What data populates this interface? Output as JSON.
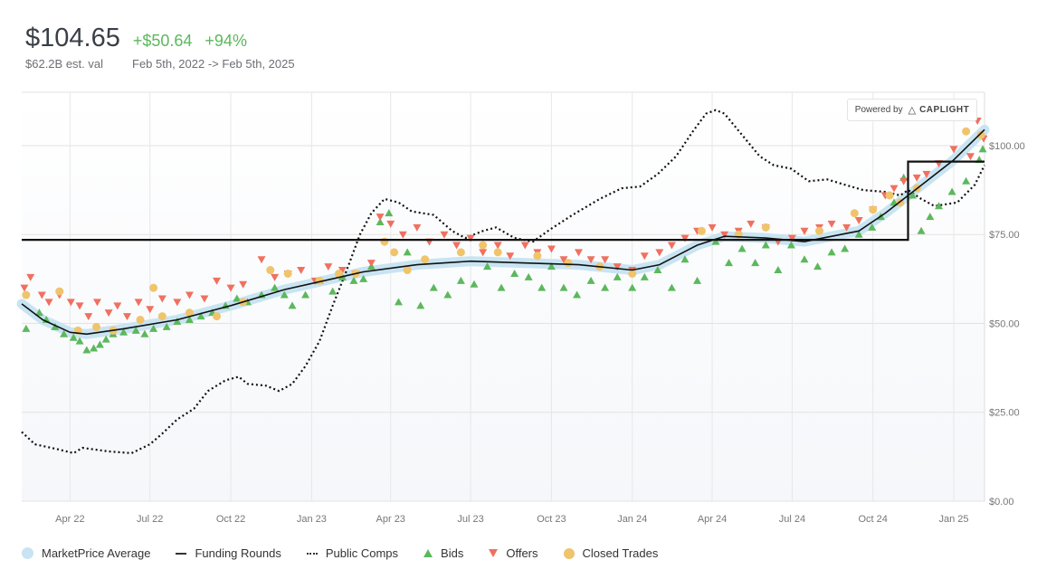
{
  "header": {
    "price": "$104.65",
    "change_abs": "+$50.64",
    "change_pct": "+94%",
    "valuation": "$62.2B est. val",
    "date_range": "Feb 5th, 2022 -> Feb 5th, 2025"
  },
  "badge": {
    "powered_by": "Powered by",
    "brand": "CAPLIGHT"
  },
  "legend": {
    "avg": "MarketPrice Average",
    "funding": "Funding Rounds",
    "comps": "Public Comps",
    "bids": "Bids",
    "offers": "Offers",
    "trades": "Closed Trades"
  },
  "colors": {
    "bids": "#5cb85c",
    "offers": "#f07060",
    "trades": "#f0c46c",
    "avg_band": "#c8e4f2",
    "positive": "#5cb85c"
  },
  "chart_data": {
    "type": "line",
    "x_start": "2022-02-05",
    "x_end": "2025-02-05",
    "x_ticks": [
      "Apr 22",
      "Jul 22",
      "Oct 22",
      "Jan 23",
      "Apr 23",
      "Jul 23",
      "Oct 23",
      "Jan 24",
      "Apr 24",
      "Jul 24",
      "Oct 24",
      "Jan 25"
    ],
    "y_ticks": [
      "$0.00",
      "$25.00",
      "$50.00",
      "$75.00",
      "$100.00"
    ],
    "ylim": [
      0,
      115
    ],
    "series": [
      {
        "name": "MarketPrice Average",
        "points": [
          [
            "2022-02-05",
            55.5
          ],
          [
            "2022-03-01",
            51
          ],
          [
            "2022-04-01",
            47.5
          ],
          [
            "2022-04-20",
            47
          ],
          [
            "2022-06-01",
            48.5
          ],
          [
            "2022-08-01",
            51
          ],
          [
            "2022-10-01",
            55
          ],
          [
            "2022-12-01",
            59.5
          ],
          [
            "2023-01-15",
            62
          ],
          [
            "2023-03-01",
            64.5
          ],
          [
            "2023-05-01",
            66.5
          ],
          [
            "2023-07-01",
            67.5
          ],
          [
            "2023-09-01",
            67
          ],
          [
            "2023-11-01",
            66.5
          ],
          [
            "2024-01-01",
            65
          ],
          [
            "2024-02-01",
            66.5
          ],
          [
            "2024-03-15",
            72
          ],
          [
            "2024-04-15",
            74.5
          ],
          [
            "2024-06-01",
            74
          ],
          [
            "2024-07-15",
            73
          ],
          [
            "2024-09-15",
            76
          ],
          [
            "2024-10-15",
            81
          ],
          [
            "2024-12-01",
            90
          ],
          [
            "2025-01-01",
            96
          ],
          [
            "2025-02-05",
            104.5
          ]
        ]
      },
      {
        "name": "Funding Rounds",
        "points": [
          [
            "2022-02-05",
            73.5
          ],
          [
            "2024-11-10",
            73.5
          ],
          [
            "2024-11-10",
            95.5
          ],
          [
            "2025-02-05",
            95.5
          ]
        ]
      },
      {
        "name": "Public Comps",
        "points": [
          [
            "2022-02-05",
            19.5
          ],
          [
            "2022-02-20",
            16
          ],
          [
            "2022-03-20",
            14.5
          ],
          [
            "2022-04-05",
            13.5
          ],
          [
            "2022-04-15",
            15
          ],
          [
            "2022-05-15",
            14
          ],
          [
            "2022-06-10",
            13.5
          ],
          [
            "2022-07-01",
            16
          ],
          [
            "2022-07-15",
            19
          ],
          [
            "2022-08-01",
            23
          ],
          [
            "2022-08-20",
            26
          ],
          [
            "2022-09-05",
            31
          ],
          [
            "2022-09-25",
            34
          ],
          [
            "2022-10-10",
            35
          ],
          [
            "2022-10-20",
            33
          ],
          [
            "2022-11-10",
            32.5
          ],
          [
            "2022-11-25",
            31
          ],
          [
            "2022-12-10",
            33
          ],
          [
            "2022-12-25",
            38
          ],
          [
            "2023-01-10",
            45
          ],
          [
            "2023-01-25",
            55
          ],
          [
            "2023-02-10",
            65
          ],
          [
            "2023-02-25",
            75
          ],
          [
            "2023-03-10",
            81
          ],
          [
            "2023-03-25",
            85
          ],
          [
            "2023-04-10",
            84
          ],
          [
            "2023-04-25",
            81.5
          ],
          [
            "2023-05-20",
            80.5
          ],
          [
            "2023-06-10",
            76
          ],
          [
            "2023-06-25",
            74
          ],
          [
            "2023-07-15",
            76
          ],
          [
            "2023-07-30",
            77
          ],
          [
            "2023-08-20",
            74
          ],
          [
            "2023-09-10",
            73
          ],
          [
            "2023-09-30",
            76.5
          ],
          [
            "2023-10-25",
            80.5
          ],
          [
            "2023-11-25",
            85
          ],
          [
            "2023-12-20",
            88
          ],
          [
            "2024-01-10",
            88.5
          ],
          [
            "2024-01-30",
            92
          ],
          [
            "2024-02-20",
            97
          ],
          [
            "2024-03-10",
            104
          ],
          [
            "2024-03-25",
            109
          ],
          [
            "2024-04-05",
            110
          ],
          [
            "2024-04-15",
            109
          ],
          [
            "2024-05-05",
            103
          ],
          [
            "2024-05-25",
            97
          ],
          [
            "2024-06-10",
            94.5
          ],
          [
            "2024-06-30",
            93.5
          ],
          [
            "2024-07-20",
            90
          ],
          [
            "2024-08-10",
            90.5
          ],
          [
            "2024-08-30",
            89
          ],
          [
            "2024-09-20",
            87.5
          ],
          [
            "2024-10-15",
            87
          ],
          [
            "2024-11-01",
            86
          ],
          [
            "2024-11-10",
            87.5
          ],
          [
            "2024-11-25",
            85
          ],
          [
            "2024-12-10",
            83
          ],
          [
            "2025-01-05",
            84
          ],
          [
            "2025-01-25",
            89
          ],
          [
            "2025-02-05",
            94.5
          ]
        ]
      }
    ],
    "bids": [
      [
        "2022-02-10",
        48.5
      ],
      [
        "2022-02-25",
        53
      ],
      [
        "2022-03-05",
        51
      ],
      [
        "2022-03-15",
        49
      ],
      [
        "2022-03-25",
        47
      ],
      [
        "2022-04-05",
        46
      ],
      [
        "2022-04-12",
        45
      ],
      [
        "2022-04-20",
        42.5
      ],
      [
        "2022-04-28",
        43
      ],
      [
        "2022-05-05",
        44
      ],
      [
        "2022-05-12",
        45.5
      ],
      [
        "2022-05-20",
        47
      ],
      [
        "2022-06-01",
        47.5
      ],
      [
        "2022-06-15",
        48
      ],
      [
        "2022-06-25",
        47
      ],
      [
        "2022-07-05",
        48.5
      ],
      [
        "2022-07-20",
        49
      ],
      [
        "2022-08-01",
        50.5
      ],
      [
        "2022-08-15",
        51
      ],
      [
        "2022-08-28",
        52
      ],
      [
        "2022-09-10",
        53
      ],
      [
        "2022-09-25",
        55
      ],
      [
        "2022-10-08",
        57
      ],
      [
        "2022-10-20",
        56
      ],
      [
        "2022-11-05",
        58
      ],
      [
        "2022-11-20",
        60
      ],
      [
        "2022-12-01",
        58
      ],
      [
        "2022-12-10",
        55
      ],
      [
        "2022-12-25",
        58
      ],
      [
        "2023-01-10",
        62
      ],
      [
        "2023-01-25",
        59
      ],
      [
        "2023-02-05",
        63
      ],
      [
        "2023-02-18",
        62
      ],
      [
        "2023-03-01",
        62.5
      ],
      [
        "2023-03-10",
        66
      ],
      [
        "2023-03-20",
        78.5
      ],
      [
        "2023-03-30",
        81
      ],
      [
        "2023-04-10",
        56
      ],
      [
        "2023-04-20",
        70
      ],
      [
        "2023-05-05",
        55
      ],
      [
        "2023-05-20",
        60
      ],
      [
        "2023-06-05",
        58
      ],
      [
        "2023-06-20",
        62
      ],
      [
        "2023-07-05",
        61
      ],
      [
        "2023-07-20",
        66
      ],
      [
        "2023-08-05",
        60
      ],
      [
        "2023-08-20",
        64
      ],
      [
        "2023-09-05",
        63
      ],
      [
        "2023-09-20",
        60
      ],
      [
        "2023-10-01",
        66
      ],
      [
        "2023-10-15",
        60
      ],
      [
        "2023-10-30",
        58
      ],
      [
        "2023-11-15",
        62
      ],
      [
        "2023-12-01",
        60
      ],
      [
        "2023-12-15",
        63
      ],
      [
        "2024-01-01",
        60
      ],
      [
        "2024-01-15",
        63
      ],
      [
        "2024-01-30",
        65
      ],
      [
        "2024-02-15",
        60
      ],
      [
        "2024-03-01",
        68
      ],
      [
        "2024-03-15",
        62
      ],
      [
        "2024-04-05",
        73
      ],
      [
        "2024-04-20",
        67
      ],
      [
        "2024-05-05",
        71
      ],
      [
        "2024-05-20",
        67
      ],
      [
        "2024-06-01",
        72
      ],
      [
        "2024-06-15",
        65
      ],
      [
        "2024-06-30",
        72
      ],
      [
        "2024-07-15",
        68
      ],
      [
        "2024-07-30",
        66
      ],
      [
        "2024-08-15",
        70
      ],
      [
        "2024-08-30",
        71
      ],
      [
        "2024-09-15",
        75
      ],
      [
        "2024-09-30",
        77
      ],
      [
        "2024-10-10",
        80
      ],
      [
        "2024-10-25",
        84
      ],
      [
        "2024-11-05",
        91
      ],
      [
        "2024-11-15",
        86
      ],
      [
        "2024-11-25",
        76
      ],
      [
        "2024-12-05",
        80
      ],
      [
        "2024-12-15",
        83
      ],
      [
        "2024-12-30",
        87
      ],
      [
        "2025-01-15",
        90
      ],
      [
        "2025-01-30",
        96
      ],
      [
        "2025-02-03",
        99
      ]
    ],
    "offers": [
      [
        "2022-02-08",
        60
      ],
      [
        "2022-02-15",
        63
      ],
      [
        "2022-02-28",
        58
      ],
      [
        "2022-03-08",
        56
      ],
      [
        "2022-03-20",
        58
      ],
      [
        "2022-04-02",
        56
      ],
      [
        "2022-04-12",
        55
      ],
      [
        "2022-04-22",
        52
      ],
      [
        "2022-05-02",
        56
      ],
      [
        "2022-05-15",
        53
      ],
      [
        "2022-05-25",
        55
      ],
      [
        "2022-06-05",
        52
      ],
      [
        "2022-06-18",
        56
      ],
      [
        "2022-07-01",
        54
      ],
      [
        "2022-07-15",
        57
      ],
      [
        "2022-08-01",
        56
      ],
      [
        "2022-08-15",
        58
      ],
      [
        "2022-09-01",
        57
      ],
      [
        "2022-09-15",
        62
      ],
      [
        "2022-10-01",
        60
      ],
      [
        "2022-10-15",
        61
      ],
      [
        "2022-11-05",
        68
      ],
      [
        "2022-11-20",
        63
      ],
      [
        "2022-12-05",
        64
      ],
      [
        "2022-12-20",
        65
      ],
      [
        "2023-01-05",
        62
      ],
      [
        "2023-01-20",
        66
      ],
      [
        "2023-02-05",
        65
      ],
      [
        "2023-02-20",
        64
      ],
      [
        "2023-03-10",
        67
      ],
      [
        "2023-03-20",
        80
      ],
      [
        "2023-04-01",
        78
      ],
      [
        "2023-04-15",
        75
      ],
      [
        "2023-05-01",
        77
      ],
      [
        "2023-05-15",
        73
      ],
      [
        "2023-06-01",
        75
      ],
      [
        "2023-06-15",
        72
      ],
      [
        "2023-07-01",
        74
      ],
      [
        "2023-07-15",
        70
      ],
      [
        "2023-08-01",
        72
      ],
      [
        "2023-08-15",
        69
      ],
      [
        "2023-09-01",
        72
      ],
      [
        "2023-09-15",
        70
      ],
      [
        "2023-10-01",
        71
      ],
      [
        "2023-10-15",
        68
      ],
      [
        "2023-11-01",
        70
      ],
      [
        "2023-11-15",
        68
      ],
      [
        "2023-12-01",
        68
      ],
      [
        "2023-12-15",
        66
      ],
      [
        "2024-01-01",
        65
      ],
      [
        "2024-01-15",
        69
      ],
      [
        "2024-02-01",
        70
      ],
      [
        "2024-02-15",
        72
      ],
      [
        "2024-03-01",
        74
      ],
      [
        "2024-03-15",
        76
      ],
      [
        "2024-04-01",
        77
      ],
      [
        "2024-04-15",
        75
      ],
      [
        "2024-05-01",
        76
      ],
      [
        "2024-05-15",
        78
      ],
      [
        "2024-06-01",
        77
      ],
      [
        "2024-06-15",
        73
      ],
      [
        "2024-07-01",
        74
      ],
      [
        "2024-07-15",
        76
      ],
      [
        "2024-08-01",
        77
      ],
      [
        "2024-08-15",
        78
      ],
      [
        "2024-09-01",
        77
      ],
      [
        "2024-09-15",
        79
      ],
      [
        "2024-10-01",
        82
      ],
      [
        "2024-10-15",
        86
      ],
      [
        "2024-10-25",
        88
      ],
      [
        "2024-11-05",
        90
      ],
      [
        "2024-11-20",
        91
      ],
      [
        "2024-12-01",
        92
      ],
      [
        "2024-12-15",
        95
      ],
      [
        "2025-01-01",
        99
      ],
      [
        "2025-01-10",
        108
      ],
      [
        "2025-01-20",
        97
      ],
      [
        "2025-01-28",
        107
      ],
      [
        "2025-02-04",
        102
      ]
    ],
    "closed_trades": [
      [
        "2022-02-10",
        58
      ],
      [
        "2022-03-20",
        59
      ],
      [
        "2022-04-10",
        48
      ],
      [
        "2022-05-01",
        49
      ],
      [
        "2022-05-20",
        48
      ],
      [
        "2022-06-20",
        51
      ],
      [
        "2022-07-15",
        52
      ],
      [
        "2022-07-05",
        60
      ],
      [
        "2022-08-15",
        53
      ],
      [
        "2022-09-15",
        52
      ],
      [
        "2022-10-15",
        56
      ],
      [
        "2022-11-15",
        65
      ],
      [
        "2022-12-05",
        64
      ],
      [
        "2023-01-10",
        62
      ],
      [
        "2023-02-01",
        64
      ],
      [
        "2023-02-20",
        64
      ],
      [
        "2023-03-25",
        73
      ],
      [
        "2023-04-05",
        70
      ],
      [
        "2023-04-20",
        65
      ],
      [
        "2023-05-10",
        68
      ],
      [
        "2023-06-20",
        70
      ],
      [
        "2023-07-15",
        72
      ],
      [
        "2023-08-01",
        70
      ],
      [
        "2023-09-15",
        69
      ],
      [
        "2023-10-20",
        67
      ],
      [
        "2023-11-25",
        66
      ],
      [
        "2024-01-01",
        64
      ],
      [
        "2024-03-20",
        76
      ],
      [
        "2024-05-01",
        75
      ],
      [
        "2024-06-01",
        77
      ],
      [
        "2024-08-01",
        76
      ],
      [
        "2024-09-10",
        81
      ],
      [
        "2024-10-01",
        82
      ],
      [
        "2024-10-20",
        86
      ],
      [
        "2024-11-01",
        84
      ],
      [
        "2024-11-20",
        88
      ],
      [
        "2025-01-15",
        104
      ],
      [
        "2025-02-01",
        103
      ]
    ]
  }
}
